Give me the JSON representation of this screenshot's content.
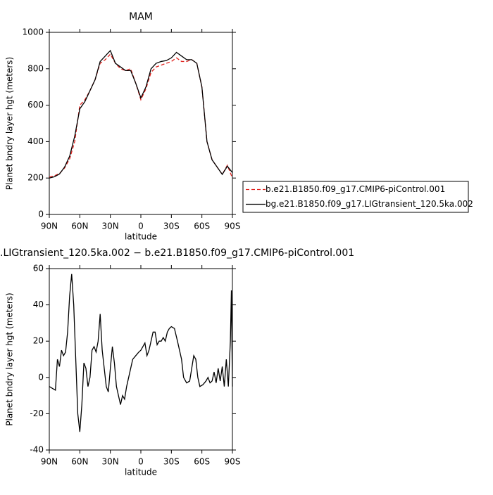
{
  "chart_data": [
    {
      "type": "line",
      "title": "MAM",
      "xlabel": "latitude",
      "ylabel": "Planet bndry layer hgt (meters)",
      "x": [
        90,
        85,
        80,
        75,
        70,
        65,
        60,
        55,
        50,
        45,
        40,
        35,
        30,
        25,
        20,
        15,
        10,
        5,
        0,
        -5,
        -10,
        -15,
        -20,
        -25,
        -30,
        -35,
        -40,
        -45,
        -50,
        -55,
        -60,
        -65,
        -70,
        -75,
        -80,
        -85,
        -90
      ],
      "series": [
        {
          "name": "b.e21.B1850.f09_g17.CMIP6-piControl.001",
          "color": "#e0201c",
          "line_style": "dashed",
          "values": [
            205,
            212,
            225,
            255,
            305,
            400,
            600,
            630,
            680,
            740,
            830,
            850,
            880,
            830,
            800,
            790,
            800,
            720,
            630,
            690,
            780,
            810,
            820,
            830,
            840,
            860,
            840,
            840,
            850,
            830,
            700,
            400,
            300,
            260,
            220,
            270,
            200
          ]
        },
        {
          "name": "bg.e21.B1850.f09_g17.LIGtransient_120.5ka.002",
          "color": "#000000",
          "line_style": "solid",
          "values": [
            200,
            207,
            222,
            260,
            320,
            430,
            580,
            620,
            680,
            740,
            840,
            870,
            900,
            830,
            810,
            790,
            790,
            720,
            640,
            700,
            800,
            830,
            840,
            845,
            860,
            890,
            870,
            850,
            850,
            830,
            700,
            400,
            300,
            260,
            220,
            265,
            230
          ]
        }
      ],
      "xlim": [
        90,
        -90
      ],
      "xticks": [
        {
          "value": 90,
          "label": "90N"
        },
        {
          "value": 60,
          "label": "60N"
        },
        {
          "value": 30,
          "label": "30N"
        },
        0,
        {
          "value": -30,
          "label": "30S"
        },
        {
          "value": -60,
          "label": "60S"
        },
        {
          "value": -90,
          "label": "90S"
        }
      ],
      "ylim": [
        0,
        1000
      ],
      "yticks": [
        0,
        200,
        400,
        600,
        800,
        1000
      ],
      "legend": "right"
    },
    {
      "type": "line",
      "title": ".LIGtransient_120.5ka.002 − b.e21.B1850.f09_g17.CMIP6-piControl.001",
      "xlabel": "latitude",
      "ylabel": "Planet bndry layer hgt (meters)",
      "x": [
        90,
        87,
        84,
        82,
        80,
        78,
        76,
        74,
        72,
        70,
        68,
        66,
        64,
        62,
        60,
        58,
        56,
        54,
        52,
        50,
        48,
        46,
        44,
        42,
        40,
        38,
        36,
        34,
        32,
        30,
        28,
        26,
        24,
        22,
        20,
        18,
        16,
        14,
        12,
        10,
        8,
        5,
        2,
        0,
        -2,
        -4,
        -6,
        -8,
        -10,
        -12,
        -14,
        -16,
        -18,
        -20,
        -22,
        -24,
        -26,
        -28,
        -30,
        -33,
        -36,
        -40,
        -42,
        -45,
        -48,
        -50,
        -52,
        -54,
        -56,
        -58,
        -61,
        -64,
        -66,
        -68,
        -70,
        -72,
        -74,
        -76,
        -78,
        -80,
        -82,
        -84,
        -86,
        -88,
        -89,
        -90
      ],
      "series": [
        {
          "color": "#000000",
          "line_style": "solid",
          "values": [
            -5,
            -6,
            -7,
            10,
            6,
            15,
            12,
            14,
            25,
            45,
            57,
            40,
            10,
            -20,
            -30,
            -15,
            8,
            5,
            -5,
            0,
            15,
            17,
            14,
            20,
            35,
            15,
            5,
            -5,
            -8,
            5,
            17,
            8,
            -5,
            -10,
            -15,
            -10,
            -12,
            -5,
            0,
            5,
            10,
            12,
            14,
            15,
            17,
            19,
            12,
            15,
            20,
            25,
            25,
            18,
            20,
            20,
            22,
            20,
            25,
            27,
            28,
            27,
            20,
            10,
            0,
            -3,
            -2,
            5,
            12,
            10,
            0,
            -5,
            -4,
            -2,
            0,
            -3,
            -2,
            3,
            -3,
            5,
            -2,
            6,
            -5,
            10,
            -5,
            20,
            48,
            -5
          ]
        }
      ],
      "xlim": [
        90,
        -90
      ],
      "xticks": [
        {
          "value": 90,
          "label": "90N"
        },
        {
          "value": 60,
          "label": "60N"
        },
        {
          "value": 30,
          "label": "30N"
        },
        0,
        {
          "value": -30,
          "label": "30S"
        },
        {
          "value": -60,
          "label": "60S"
        },
        {
          "value": -90,
          "label": "90S"
        }
      ],
      "ylim": [
        -40,
        60
      ],
      "yticks": [
        -40,
        -20,
        0,
        20,
        40,
        60
      ]
    }
  ]
}
